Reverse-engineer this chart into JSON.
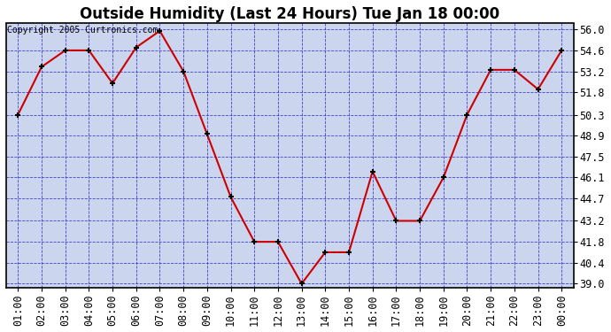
{
  "title": "Outside Humidity (Last 24 Hours) Tue Jan 18 00:00",
  "copyright": "Copyright 2005 Curtronics.com",
  "x_labels": [
    "01:00",
    "02:00",
    "03:00",
    "04:00",
    "05:00",
    "06:00",
    "07:00",
    "08:00",
    "09:00",
    "10:00",
    "11:00",
    "12:00",
    "13:00",
    "14:00",
    "15:00",
    "16:00",
    "17:00",
    "18:00",
    "19:00",
    "20:00",
    "21:00",
    "22:00",
    "23:00",
    "00:00"
  ],
  "y_values": [
    50.3,
    53.5,
    54.6,
    54.6,
    52.4,
    54.8,
    55.9,
    53.2,
    49.0,
    44.8,
    41.8,
    41.8,
    39.0,
    41.1,
    41.1,
    46.5,
    43.2,
    43.2,
    46.1,
    50.3,
    53.3,
    53.3,
    52.0,
    54.6
  ],
  "line_color": "#cc0000",
  "marker_color": "#cc0000",
  "fig_bg_color": "#ffffff",
  "plot_bg_color": "#ccd5ee",
  "grid_color": "#3333cc",
  "border_color": "#000000",
  "title_color": "#000000",
  "y_ticks": [
    39.0,
    40.4,
    41.8,
    43.2,
    44.7,
    46.1,
    47.5,
    48.9,
    50.3,
    51.8,
    53.2,
    54.6,
    56.0
  ],
  "ylim": [
    38.7,
    56.4
  ],
  "title_fontsize": 12,
  "tick_fontsize": 8.5,
  "copyright_fontsize": 7
}
